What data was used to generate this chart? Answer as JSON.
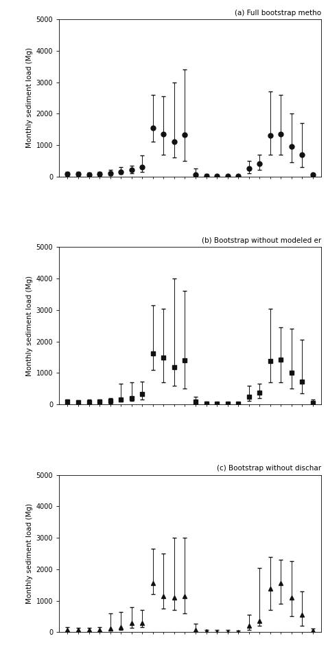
{
  "subplot_titles": [
    "(a) Full bootstrap metho",
    "(b) Bootstrap without modeled er",
    "(c) Bootstrap without dischar"
  ],
  "ylabel": "Monthly sediment load (Mg)",
  "x_values": [
    1,
    2,
    3,
    4,
    5,
    6,
    7,
    8,
    9,
    10,
    11,
    12,
    13,
    14,
    15,
    16,
    17,
    18,
    19,
    20,
    21,
    22,
    23,
    24
  ],
  "panel_a": {
    "y": [
      80,
      70,
      60,
      80,
      100,
      150,
      200,
      300,
      1550,
      1350,
      1100,
      1320,
      50,
      20,
      10,
      10,
      20,
      250,
      400,
      1300,
      1340,
      950,
      700,
      50
    ],
    "y_lo": [
      20,
      20,
      20,
      20,
      30,
      80,
      100,
      150,
      1100,
      700,
      600,
      500,
      0,
      0,
      0,
      0,
      0,
      100,
      200,
      700,
      700,
      450,
      300,
      10
    ],
    "y_hi": [
      150,
      140,
      130,
      150,
      200,
      300,
      350,
      680,
      2600,
      2550,
      3000,
      3400,
      250,
      80,
      50,
      60,
      60,
      500,
      700,
      2700,
      2600,
      2000,
      1700,
      100
    ],
    "marker": "o"
  },
  "panel_b": {
    "y": [
      80,
      70,
      70,
      80,
      100,
      150,
      200,
      320,
      1620,
      1480,
      1170,
      1400,
      80,
      20,
      10,
      10,
      20,
      250,
      380,
      1380,
      1420,
      1000,
      730,
      50
    ],
    "y_lo": [
      20,
      20,
      20,
      20,
      30,
      80,
      100,
      150,
      1100,
      700,
      600,
      500,
      0,
      0,
      0,
      0,
      0,
      100,
      200,
      700,
      700,
      500,
      350,
      10
    ],
    "y_hi": [
      150,
      140,
      150,
      150,
      200,
      650,
      700,
      730,
      3150,
      3050,
      4000,
      3600,
      230,
      80,
      60,
      60,
      60,
      600,
      650,
      3050,
      2450,
      2400,
      2050,
      150
    ],
    "marker": "s"
  },
  "panel_c": {
    "y": [
      80,
      70,
      60,
      80,
      120,
      150,
      280,
      300,
      1550,
      1150,
      1100,
      1150,
      60,
      20,
      10,
      10,
      10,
      200,
      350,
      1380,
      1550,
      1100,
      550,
      50
    ],
    "y_lo": [
      20,
      20,
      20,
      20,
      50,
      80,
      130,
      150,
      1200,
      750,
      700,
      600,
      10,
      0,
      0,
      0,
      0,
      80,
      200,
      700,
      900,
      500,
      200,
      10
    ],
    "y_hi": [
      150,
      130,
      130,
      150,
      600,
      650,
      800,
      700,
      2650,
      2500,
      3000,
      3000,
      270,
      80,
      60,
      60,
      50,
      550,
      2050,
      2400,
      2300,
      2250,
      1300,
      120
    ],
    "marker": "^"
  },
  "ylim": [
    0,
    5000
  ],
  "yticks": [
    0,
    1000,
    2000,
    3000,
    4000,
    5000
  ],
  "marker_size": 5,
  "marker_color": "#111111",
  "line_color": "#111111",
  "capsize": 2,
  "elinewidth": 0.7,
  "title_fontsize": 7.5,
  "label_fontsize": 7.5,
  "tick_fontsize": 7,
  "fig_bg": "#ffffff"
}
